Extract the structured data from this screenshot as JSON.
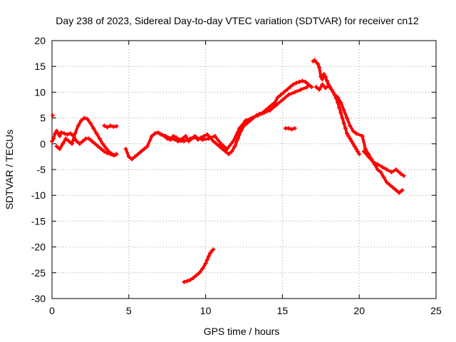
{
  "chart_data": {
    "type": "scatter",
    "title": "Day 238 of 2023, Sidereal Day-to-day VTEC variation (SDTVAR) for receiver cn12",
    "xlabel": "GPS time / hours",
    "ylabel": "SDTVAR / TECUs",
    "xlim": [
      0,
      25
    ],
    "ylim": [
      -30,
      20
    ],
    "xticks": [
      0,
      5,
      10,
      15,
      20,
      25
    ],
    "yticks": [
      -30,
      -25,
      -20,
      -15,
      -10,
      -5,
      0,
      5,
      10,
      15,
      20
    ],
    "grid": true,
    "marker": "+",
    "series_color": "#ff0000",
    "series": [
      {
        "name": "SDTVAR",
        "x": [
          0.0,
          0.1,
          0.2,
          0.3,
          0.4,
          0.5,
          0.6,
          0.8,
          1.0,
          1.2,
          1.4,
          1.6,
          1.8,
          2.0,
          2.2,
          2.4,
          2.6,
          2.8,
          3.0,
          3.2,
          3.4,
          3.6,
          3.8,
          4.0,
          4.2,
          0.3,
          0.5,
          0.7,
          0.9,
          1.1,
          1.3,
          1.5,
          1.7,
          1.9,
          2.1,
          2.3,
          2.5,
          2.7,
          2.9,
          3.1,
          3.3,
          3.5,
          3.7,
          3.9,
          4.1,
          3.4,
          3.6,
          3.8,
          4.0,
          4.2,
          4.8,
          5.0,
          5.2,
          5.4,
          5.6,
          5.8,
          6.0,
          6.2,
          6.5,
          6.7,
          6.9,
          7.1,
          7.3,
          7.5,
          7.7,
          7.9,
          8.1,
          8.3,
          8.5,
          8.7,
          8.9,
          9.1,
          9.3,
          9.5,
          9.7,
          9.9,
          10.1,
          10.3,
          10.5,
          10.7,
          10.9,
          11.1,
          11.3,
          11.5,
          11.7,
          11.9,
          12.1,
          12.3,
          12.5,
          12.7,
          12.9,
          13.1,
          13.3,
          13.5,
          13.7,
          13.9,
          14.1,
          14.3,
          14.5,
          14.7,
          14.9,
          15.1,
          15.3,
          15.5,
          15.7,
          15.9,
          16.1,
          16.3,
          16.5,
          16.7,
          16.9,
          7.0,
          7.4,
          7.8,
          8.2,
          8.6,
          9.0,
          9.4,
          9.8,
          10.2,
          10.6,
          11.0,
          11.4,
          11.8,
          12.2,
          12.6,
          13.0,
          13.4,
          13.8,
          14.2,
          14.6,
          15.0,
          15.4,
          15.8,
          16.2,
          16.6,
          15.2,
          15.4,
          15.6,
          15.8,
          17.0,
          17.1,
          17.2,
          17.3,
          17.4,
          17.5,
          17.6,
          17.7,
          17.8,
          17.9,
          18.0,
          18.1,
          18.2,
          18.3,
          18.4,
          18.5,
          18.6,
          18.7,
          18.8,
          18.9,
          19.0,
          19.1,
          19.2,
          19.3,
          19.4,
          19.5,
          19.6,
          19.7,
          19.8,
          19.9,
          20.0,
          17.2,
          17.4,
          17.6,
          17.8,
          18.0,
          18.2,
          18.4,
          18.6,
          18.8,
          19.0,
          19.2,
          19.4,
          19.6,
          19.8,
          20.2,
          20.4,
          20.6,
          20.8,
          21.0,
          21.2,
          21.4,
          21.6,
          21.8,
          22.0,
          22.2,
          22.4,
          22.6,
          22.8,
          20.3,
          20.6,
          20.9,
          21.2,
          21.5,
          21.8,
          22.1,
          22.4,
          22.7,
          22.9,
          8.6,
          8.8,
          9.0,
          9.2,
          9.4,
          9.6,
          9.8,
          10.0,
          10.1,
          10.2,
          10.3,
          10.4,
          10.5,
          0.05
        ],
        "y": [
          0.5,
          1.0,
          2.0,
          2.5,
          2.0,
          1.5,
          2.2,
          2.0,
          1.8,
          2.0,
          1.5,
          0.5,
          0.0,
          0.5,
          1.0,
          1.0,
          0.5,
          0.0,
          -0.5,
          -1.0,
          -1.5,
          -1.8,
          -2.0,
          -2.2,
          -2.0,
          -0.5,
          -1.0,
          0.0,
          1.0,
          0.5,
          0.0,
          2.0,
          3.5,
          4.5,
          5.0,
          4.8,
          4.0,
          3.0,
          2.0,
          1.0,
          0.0,
          -0.8,
          -1.5,
          -2.0,
          -2.2,
          3.5,
          3.2,
          3.5,
          3.3,
          3.4,
          -1.0,
          -2.5,
          -3.0,
          -2.5,
          -2.0,
          -1.5,
          -1.0,
          -0.5,
          1.5,
          2.0,
          2.2,
          1.8,
          1.5,
          1.0,
          0.8,
          1.5,
          1.2,
          0.8,
          1.0,
          1.5,
          0.5,
          1.0,
          1.5,
          0.8,
          1.2,
          1.5,
          1.8,
          1.2,
          0.5,
          0.0,
          -0.5,
          -1.0,
          -1.5,
          -2.0,
          -1.5,
          -0.5,
          1.0,
          2.5,
          3.5,
          4.0,
          4.5,
          5.0,
          5.5,
          5.8,
          6.0,
          6.5,
          7.0,
          7.5,
          8.0,
          9.0,
          9.5,
          10.0,
          10.5,
          11.0,
          11.5,
          11.8,
          12.0,
          12.2,
          12.0,
          11.5,
          11.0,
          2.0,
          1.5,
          1.0,
          0.5,
          0.5,
          1.0,
          1.2,
          0.8,
          1.0,
          1.5,
          0.0,
          -1.0,
          0.5,
          3.0,
          4.5,
          5.0,
          5.5,
          6.0,
          6.5,
          7.5,
          8.5,
          9.5,
          10.0,
          10.5,
          11.0,
          3.0,
          3.0,
          2.8,
          3.0,
          16.0,
          16.2,
          15.8,
          15.5,
          14.8,
          13.0,
          12.5,
          13.5,
          13.0,
          12.2,
          11.5,
          11.0,
          10.5,
          10.0,
          9.5,
          8.8,
          8.0,
          7.0,
          6.0,
          5.0,
          4.0,
          3.0,
          2.0,
          1.5,
          1.0,
          0.5,
          0.0,
          -0.5,
          -1.0,
          -1.5,
          -2.0,
          11.0,
          10.5,
          11.5,
          10.8,
          11.2,
          10.5,
          9.5,
          9.0,
          8.0,
          6.5,
          5.0,
          3.5,
          2.5,
          2.0,
          1.5,
          -1.0,
          -2.0,
          -3.0,
          -4.0,
          -5.0,
          -5.5,
          -6.5,
          -7.5,
          -8.0,
          -8.5,
          -9.0,
          -9.5,
          -9.0,
          -1.5,
          -2.5,
          -3.5,
          -4.0,
          -4.5,
          -5.0,
          -5.5,
          -5.0,
          -5.8,
          -6.2,
          -26.8,
          -26.6,
          -26.4,
          -26.0,
          -25.5,
          -25.0,
          -24.2,
          -23.2,
          -22.5,
          -21.8,
          -21.2,
          -20.8,
          -20.5,
          5.5
        ]
      }
    ]
  }
}
